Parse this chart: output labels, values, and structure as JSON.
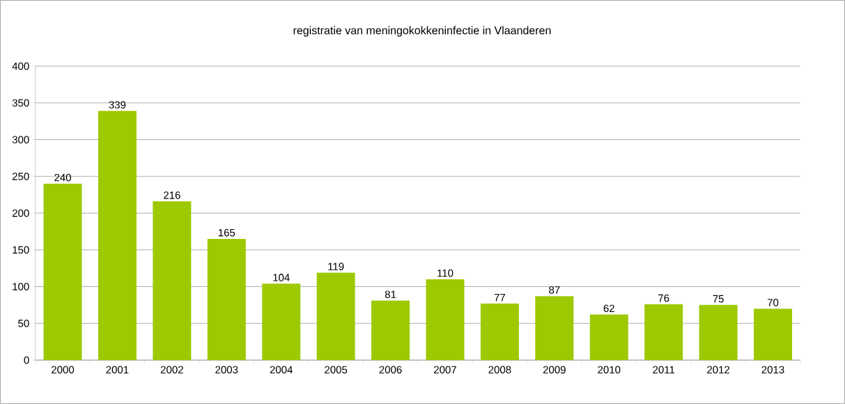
{
  "chart_data": {
    "type": "bar",
    "title": "registratie van meningokokkeninfectie in Vlaanderen",
    "categories": [
      "2000",
      "2001",
      "2002",
      "2003",
      "2004",
      "2005",
      "2006",
      "2007",
      "2008",
      "2009",
      "2010",
      "2011",
      "2012",
      "2013"
    ],
    "values": [
      240,
      339,
      216,
      165,
      104,
      119,
      81,
      110,
      77,
      87,
      62,
      76,
      75,
      70
    ],
    "color": "#9dc900",
    "ylim": [
      0,
      400
    ],
    "yticks": [
      0,
      50,
      100,
      150,
      200,
      250,
      300,
      350,
      400
    ],
    "grid": "y",
    "data_labels": true
  }
}
